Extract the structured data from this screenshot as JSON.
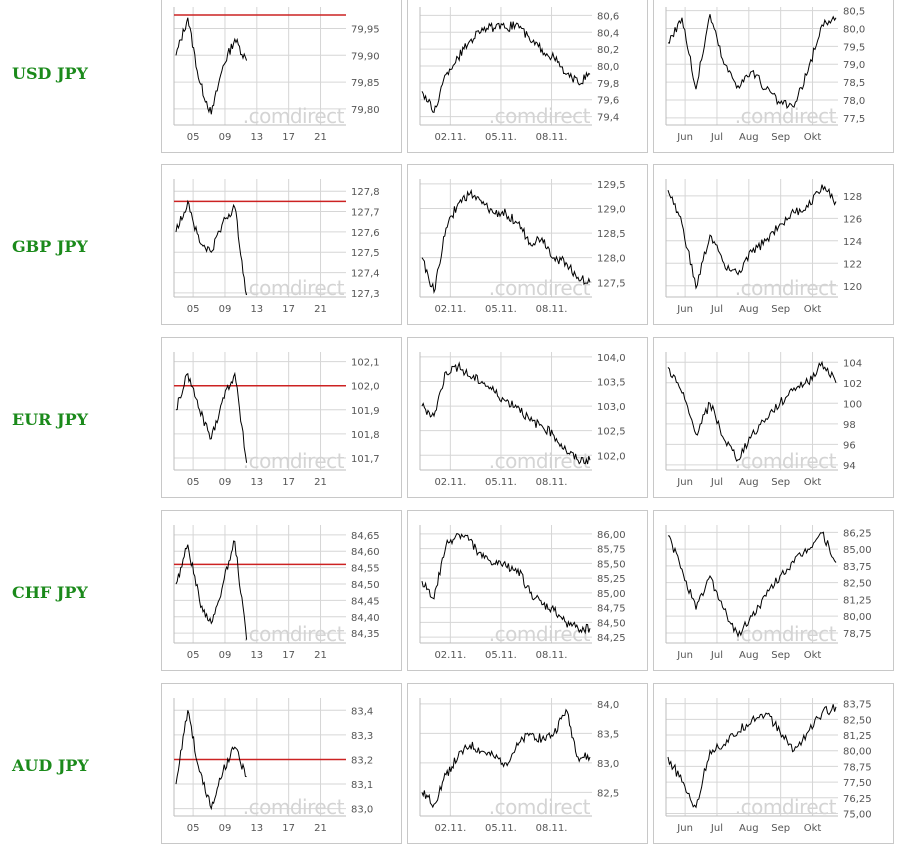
{
  "watermark": ".comdirect",
  "colors": {
    "label": "#1b8a1b",
    "line": "#000000",
    "ref_line": "#cc2222",
    "grid": "#d6d6d6"
  },
  "rows": [
    {
      "label": "USD JPY"
    },
    {
      "label": "GBP JPY"
    },
    {
      "label": "EUR JPY"
    },
    {
      "label": "CHF JPY"
    },
    {
      "label": "AUD JPY"
    }
  ],
  "chart_data": [
    {
      "id": "usd-jpy-day",
      "type": "line",
      "pair": "USD JPY",
      "period": "day",
      "x_ticks": [
        "05",
        "09",
        "13",
        "17",
        "21"
      ],
      "y_ticks": [
        "79,95",
        "79,90",
        "79,85",
        "79,80"
      ],
      "y_tick_values": [
        79.95,
        79.9,
        79.85,
        79.8
      ],
      "ylim": [
        79.77,
        79.99
      ],
      "reference_line": 79.975,
      "x": [
        0,
        2,
        4,
        6,
        8,
        10,
        12
      ],
      "y": [
        79.9,
        79.97,
        79.85,
        79.79,
        79.88,
        79.93,
        79.89
      ]
    },
    {
      "id": "usd-jpy-week",
      "type": "line",
      "pair": "USD JPY",
      "period": "week",
      "x_ticks": [
        "02.11.",
        "05.11.",
        "08.11."
      ],
      "y_ticks": [
        "80,6",
        "80,4",
        "80,2",
        "80,0",
        "79,8",
        "79,6",
        "79,4"
      ],
      "y_tick_values": [
        80.6,
        80.4,
        80.2,
        80.0,
        79.8,
        79.6,
        79.4
      ],
      "ylim": [
        79.3,
        80.7
      ],
      "x": [
        0,
        0.5,
        1,
        1.5,
        2,
        2.5,
        3,
        3.5,
        4,
        4.5,
        5,
        5.5,
        6,
        6.5,
        7
      ],
      "y": [
        79.7,
        79.45,
        79.9,
        80.1,
        80.3,
        80.45,
        80.45,
        80.45,
        80.5,
        80.3,
        80.2,
        80.1,
        79.9,
        79.8,
        79.9
      ]
    },
    {
      "id": "usd-jpy-6m",
      "type": "line",
      "pair": "USD JPY",
      "period": "6 months",
      "x_ticks": [
        "Jun",
        "Jul",
        "Aug",
        "Sep",
        "Okt"
      ],
      "y_ticks": [
        "80,5",
        "80,0",
        "79,5",
        "79,0",
        "78,5",
        "78,0",
        "77,5"
      ],
      "y_tick_values": [
        80.5,
        80.0,
        79.5,
        79.0,
        78.5,
        78.0,
        77.5
      ],
      "ylim": [
        77.3,
        80.6
      ],
      "x": [
        0,
        1,
        2,
        3,
        4,
        5,
        6,
        7,
        8,
        9,
        10,
        11,
        12
      ],
      "y": [
        79.6,
        80.3,
        78.3,
        80.4,
        79.0,
        78.4,
        78.8,
        78.3,
        77.9,
        77.8,
        78.8,
        80.1,
        80.3
      ]
    },
    {
      "id": "gbp-jpy-day",
      "type": "line",
      "pair": "GBP JPY",
      "period": "day",
      "x_ticks": [
        "05",
        "09",
        "13",
        "17",
        "21"
      ],
      "y_ticks": [
        "127,8",
        "127,7",
        "127,6",
        "127,5",
        "127,4",
        "127,3"
      ],
      "y_tick_values": [
        127.8,
        127.7,
        127.6,
        127.5,
        127.4,
        127.3
      ],
      "ylim": [
        127.28,
        127.86
      ],
      "reference_line": 127.75,
      "x": [
        0,
        2,
        4,
        6,
        8,
        10,
        12
      ],
      "y": [
        127.6,
        127.75,
        127.55,
        127.5,
        127.65,
        127.72,
        127.29
      ]
    },
    {
      "id": "gbp-jpy-week",
      "type": "line",
      "pair": "GBP JPY",
      "period": "week",
      "x_ticks": [
        "02.11.",
        "05.11.",
        "08.11."
      ],
      "y_ticks": [
        "129,5",
        "129,0",
        "128,5",
        "128,0",
        "127,5"
      ],
      "y_tick_values": [
        129.5,
        129.0,
        128.5,
        128.0,
        127.5
      ],
      "ylim": [
        127.2,
        129.6
      ],
      "x": [
        0,
        0.5,
        1,
        1.5,
        2,
        2.5,
        3,
        3.5,
        4,
        4.5,
        5,
        5.5,
        6,
        6.5,
        7
      ],
      "y": [
        128.0,
        127.3,
        128.6,
        129.1,
        129.3,
        129.1,
        128.9,
        128.9,
        128.7,
        128.3,
        128.4,
        128.0,
        127.9,
        127.6,
        127.5
      ]
    },
    {
      "id": "gbp-jpy-6m",
      "type": "line",
      "pair": "GBP JPY",
      "period": "6 months",
      "x_ticks": [
        "Jun",
        "Jul",
        "Aug",
        "Sep",
        "Okt"
      ],
      "y_ticks": [
        "128",
        "126",
        "124",
        "122",
        "120"
      ],
      "y_tick_values": [
        128,
        126,
        124,
        122,
        120
      ],
      "ylim": [
        119,
        129.5
      ],
      "x": [
        0,
        1,
        2,
        3,
        4,
        5,
        6,
        7,
        8,
        9,
        10,
        11,
        12
      ],
      "y": [
        128.5,
        125.5,
        119.8,
        124.5,
        122.0,
        121.0,
        123.0,
        124.0,
        125.5,
        126.5,
        127.0,
        129.0,
        127.5
      ]
    },
    {
      "id": "eur-jpy-day",
      "type": "line",
      "pair": "EUR JPY",
      "period": "day",
      "x_ticks": [
        "05",
        "09",
        "13",
        "17",
        "21"
      ],
      "y_ticks": [
        "102,1",
        "102,0",
        "101,9",
        "101,8",
        "101,7"
      ],
      "y_tick_values": [
        102.1,
        102.0,
        101.9,
        101.8,
        101.7
      ],
      "ylim": [
        101.65,
        102.14
      ],
      "reference_line": 102.0,
      "x": [
        0,
        2,
        4,
        6,
        8,
        10,
        12
      ],
      "y": [
        101.9,
        102.05,
        101.9,
        101.78,
        101.95,
        102.05,
        101.68
      ]
    },
    {
      "id": "eur-jpy-week",
      "type": "line",
      "pair": "EUR JPY",
      "period": "week",
      "x_ticks": [
        "02.11.",
        "05.11.",
        "08.11."
      ],
      "y_ticks": [
        "104,0",
        "103,5",
        "103,0",
        "102,5",
        "102,0"
      ],
      "y_tick_values": [
        104.0,
        103.5,
        103.0,
        102.5,
        102.0
      ],
      "ylim": [
        101.7,
        104.1
      ],
      "x": [
        0,
        0.5,
        1,
        1.5,
        2,
        2.5,
        3,
        3.5,
        4,
        4.5,
        5,
        5.5,
        6,
        6.5,
        7
      ],
      "y": [
        103.0,
        102.8,
        103.7,
        103.8,
        103.6,
        103.5,
        103.3,
        103.1,
        103.0,
        102.7,
        102.6,
        102.4,
        102.1,
        101.9,
        101.9
      ]
    },
    {
      "id": "eur-jpy-6m",
      "type": "line",
      "pair": "EUR JPY",
      "period": "6 months",
      "x_ticks": [
        "Jun",
        "Jul",
        "Aug",
        "Sep",
        "Okt"
      ],
      "y_ticks": [
        "104",
        "102",
        "100",
        "98",
        "96",
        "94"
      ],
      "y_tick_values": [
        104,
        102,
        100,
        98,
        96,
        94
      ],
      "ylim": [
        93.5,
        105
      ],
      "x": [
        0,
        1,
        2,
        3,
        4,
        5,
        6,
        7,
        8,
        9,
        10,
        11,
        12
      ],
      "y": [
        103.5,
        101.0,
        97.0,
        100.0,
        96.5,
        94.5,
        97.0,
        98.5,
        100.0,
        101.5,
        102.0,
        104.0,
        102.0
      ]
    },
    {
      "id": "chf-jpy-day",
      "type": "line",
      "pair": "CHF JPY",
      "period": "day",
      "x_ticks": [
        "05",
        "09",
        "13",
        "17",
        "21"
      ],
      "y_ticks": [
        "84,65",
        "84,60",
        "84,55",
        "84,50",
        "84,45",
        "84,40",
        "84,35"
      ],
      "y_tick_values": [
        84.65,
        84.6,
        84.55,
        84.5,
        84.45,
        84.4,
        84.35
      ],
      "ylim": [
        84.32,
        84.68
      ],
      "reference_line": 84.56,
      "x": [
        0,
        2,
        4,
        6,
        8,
        10,
        12
      ],
      "y": [
        84.5,
        84.62,
        84.45,
        84.38,
        84.5,
        84.63,
        84.33
      ]
    },
    {
      "id": "chf-jpy-week",
      "type": "line",
      "pair": "CHF JPY",
      "period": "week",
      "x_ticks": [
        "02.11.",
        "05.11.",
        "08.11."
      ],
      "y_ticks": [
        "86,00",
        "85,75",
        "85,50",
        "85,25",
        "85,00",
        "84,75",
        "84,50",
        "84,25"
      ],
      "y_tick_values": [
        86.0,
        85.75,
        85.5,
        85.25,
        85.0,
        84.75,
        84.5,
        84.25
      ],
      "ylim": [
        84.15,
        86.15
      ],
      "x": [
        0,
        0.5,
        1,
        1.5,
        2,
        2.5,
        3,
        3.5,
        4,
        4.5,
        5,
        5.5,
        6,
        6.5,
        7
      ],
      "y": [
        85.2,
        84.9,
        85.8,
        86.0,
        85.9,
        85.6,
        85.5,
        85.45,
        85.4,
        85.0,
        84.8,
        84.7,
        84.5,
        84.4,
        84.4
      ]
    },
    {
      "id": "chf-jpy-6m",
      "type": "line",
      "pair": "CHF JPY",
      "period": "6 months",
      "x_ticks": [
        "Jun",
        "Jul",
        "Aug",
        "Sep",
        "Okt"
      ],
      "y_ticks": [
        "86,25",
        "85,00",
        "83,75",
        "82,50",
        "81,25",
        "80,00",
        "78,75"
      ],
      "y_tick_values": [
        86.25,
        85.0,
        83.75,
        82.5,
        81.25,
        80.0,
        78.75
      ],
      "ylim": [
        78.0,
        86.8
      ],
      "x": [
        0,
        1,
        2,
        3,
        4,
        5,
        6,
        7,
        8,
        9,
        10,
        11,
        12
      ],
      "y": [
        86.0,
        83.5,
        80.5,
        83.0,
        80.5,
        78.5,
        80.0,
        81.5,
        83.0,
        84.0,
        85.0,
        86.2,
        84.0
      ]
    },
    {
      "id": "aud-jpy-day",
      "type": "line",
      "pair": "AUD JPY",
      "period": "day",
      "x_ticks": [
        "05",
        "09",
        "13",
        "17",
        "21"
      ],
      "y_ticks": [
        "83,4",
        "83,3",
        "83,2",
        "83,1",
        "83,0"
      ],
      "y_tick_values": [
        83.4,
        83.3,
        83.2,
        83.1,
        83.0
      ],
      "ylim": [
        82.97,
        83.45
      ],
      "reference_line": 83.2,
      "x": [
        0,
        2,
        4,
        6,
        8,
        10,
        12
      ],
      "y": [
        83.1,
        83.4,
        83.15,
        83.0,
        83.15,
        83.25,
        83.13
      ]
    },
    {
      "id": "aud-jpy-week",
      "type": "line",
      "pair": "AUD JPY",
      "period": "week",
      "x_ticks": [
        "02.11.",
        "05.11.",
        "08.11."
      ],
      "y_ticks": [
        "84,0",
        "83,5",
        "83,0",
        "82,5"
      ],
      "y_tick_values": [
        84.0,
        83.5,
        83.0,
        82.5
      ],
      "ylim": [
        82.1,
        84.1
      ],
      "x": [
        0,
        0.5,
        1,
        1.5,
        2,
        2.5,
        3,
        3.5,
        4,
        4.5,
        5,
        5.5,
        6,
        6.5,
        7
      ],
      "y": [
        82.5,
        82.3,
        82.8,
        83.1,
        83.3,
        83.2,
        83.1,
        83.0,
        83.3,
        83.5,
        83.4,
        83.5,
        83.9,
        83.1,
        83.1
      ]
    },
    {
      "id": "aud-jpy-6m",
      "type": "line",
      "pair": "AUD JPY",
      "period": "6 months",
      "x_ticks": [
        "Jun",
        "Jul",
        "Aug",
        "Sep",
        "Okt"
      ],
      "y_ticks": [
        "83,75",
        "82,50",
        "81,25",
        "80,00",
        "78,75",
        "77,50",
        "76,25",
        "75,00"
      ],
      "y_tick_values": [
        83.75,
        82.5,
        81.25,
        80.0,
        78.75,
        77.5,
        76.25,
        75.0
      ],
      "ylim": [
        74.8,
        84.2
      ],
      "x": [
        0,
        1,
        2,
        3,
        4,
        5,
        6,
        7,
        8,
        9,
        10,
        11,
        12
      ],
      "y": [
        79.5,
        77.5,
        75.5,
        80.0,
        80.5,
        81.5,
        82.5,
        83.0,
        81.5,
        80.0,
        81.5,
        83.0,
        83.5
      ]
    }
  ]
}
